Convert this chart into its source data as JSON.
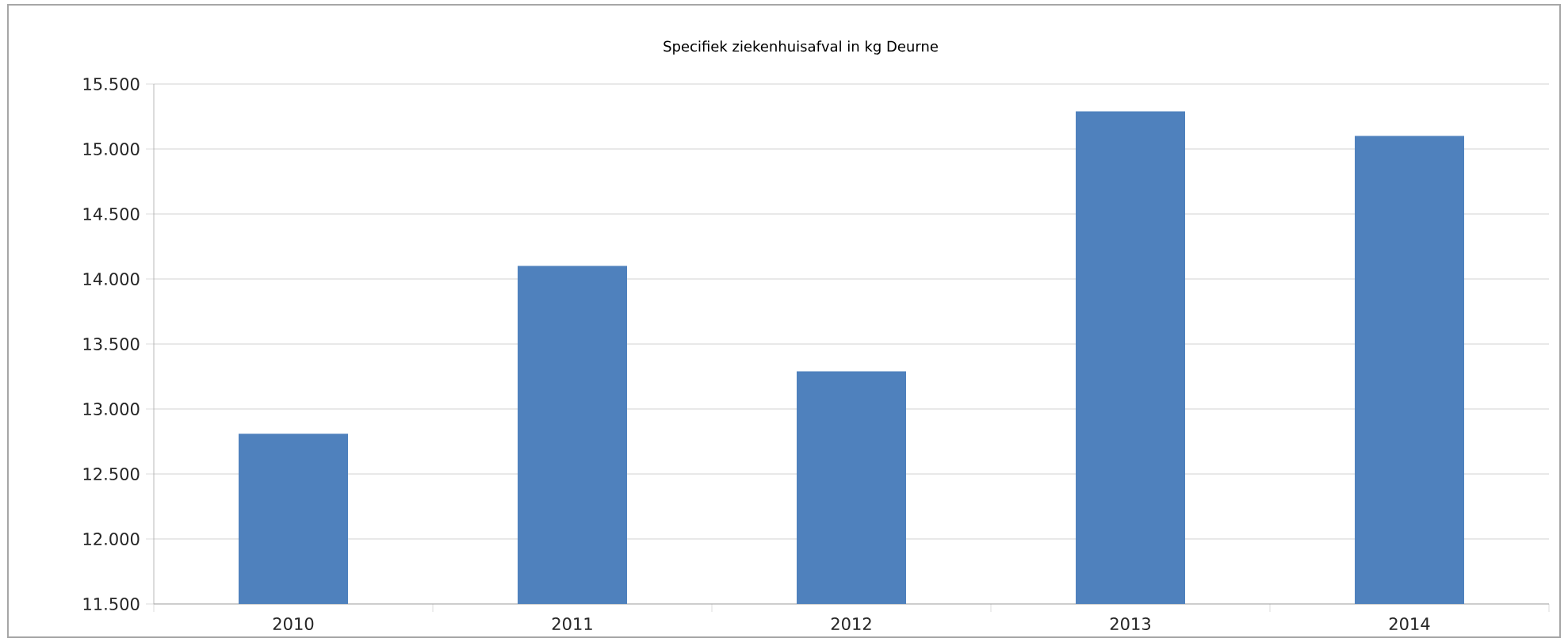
{
  "chart_data": {
    "type": "bar",
    "title": "Specifiek ziekenhuisafval in kg Deurne",
    "categories": [
      "2010",
      "2011",
      "2012",
      "2013",
      "2014"
    ],
    "values": [
      12810,
      14100,
      13290,
      15290,
      15100
    ],
    "color": "#4f81bd",
    "ylim": [
      11500,
      15500
    ],
    "yticks": [
      {
        "value": 11500,
        "label": "11.500"
      },
      {
        "value": 12000,
        "label": "12.000"
      },
      {
        "value": 12500,
        "label": "12.500"
      },
      {
        "value": 13000,
        "label": "13.000"
      },
      {
        "value": 13500,
        "label": "13.500"
      },
      {
        "value": 14000,
        "label": "14.000"
      },
      {
        "value": 14500,
        "label": "14.500"
      },
      {
        "value": 15000,
        "label": "15.000"
      },
      {
        "value": 15500,
        "label": "15.500"
      }
    ],
    "grid": "y"
  }
}
